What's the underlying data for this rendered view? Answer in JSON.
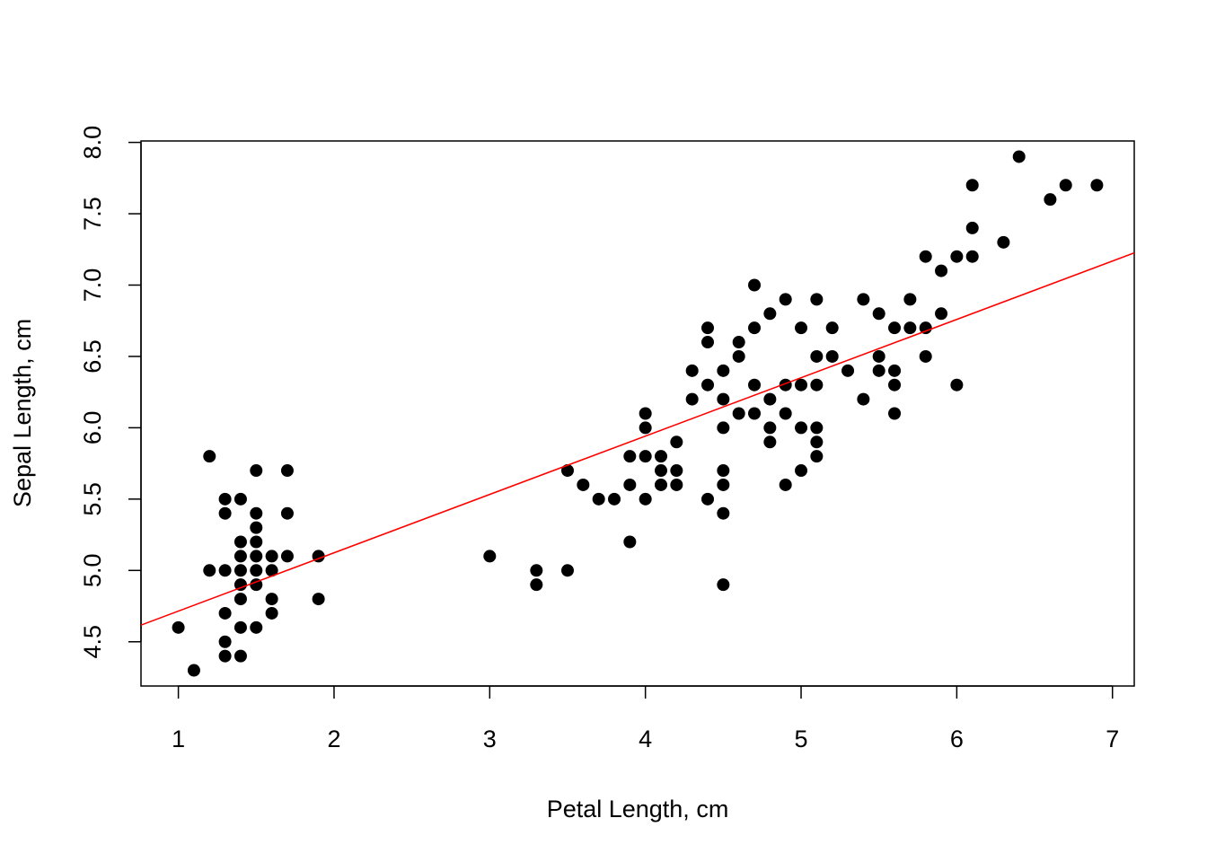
{
  "chart_data": {
    "type": "scatter",
    "title": "",
    "xlabel": "Petal Length, cm",
    "ylabel": "Sepal Length, cm",
    "xlim": [
      0.76,
      7.14
    ],
    "ylim": [
      4.19,
      8.01
    ],
    "x_ticks": [
      "1",
      "2",
      "3",
      "4",
      "5",
      "6",
      "7"
    ],
    "y_ticks": [
      "4.5",
      "5.0",
      "5.5",
      "6.0",
      "6.5",
      "7.0",
      "7.5",
      "8.0"
    ],
    "grid": false,
    "point_color": "#000000",
    "fit_line_color": "#ff0000",
    "fit_line": {
      "type": "linear",
      "intercept": 4.306,
      "slope": 0.4089
    },
    "points": [
      [
        1.0,
        4.6
      ],
      [
        1.1,
        4.3
      ],
      [
        1.2,
        5.8
      ],
      [
        1.2,
        5.0
      ],
      [
        1.3,
        5.5
      ],
      [
        1.3,
        5.4
      ],
      [
        1.3,
        5.0
      ],
      [
        1.3,
        4.7
      ],
      [
        1.3,
        4.5
      ],
      [
        1.3,
        4.4
      ],
      [
        1.4,
        5.5
      ],
      [
        1.4,
        5.2
      ],
      [
        1.4,
        5.1
      ],
      [
        1.4,
        5.0
      ],
      [
        1.4,
        4.9
      ],
      [
        1.4,
        4.8
      ],
      [
        1.4,
        4.6
      ],
      [
        1.4,
        4.4
      ],
      [
        1.5,
        5.7
      ],
      [
        1.5,
        5.4
      ],
      [
        1.5,
        5.3
      ],
      [
        1.5,
        5.2
      ],
      [
        1.5,
        5.1
      ],
      [
        1.5,
        5.0
      ],
      [
        1.5,
        4.9
      ],
      [
        1.5,
        4.6
      ],
      [
        1.6,
        5.1
      ],
      [
        1.6,
        5.0
      ],
      [
        1.6,
        4.8
      ],
      [
        1.6,
        4.7
      ],
      [
        1.7,
        5.7
      ],
      [
        1.7,
        5.4
      ],
      [
        1.7,
        5.1
      ],
      [
        1.9,
        5.1
      ],
      [
        1.9,
        4.8
      ],
      [
        3.0,
        5.1
      ],
      [
        3.3,
        5.0
      ],
      [
        3.3,
        4.9
      ],
      [
        3.5,
        5.7
      ],
      [
        3.5,
        5.0
      ],
      [
        3.6,
        5.6
      ],
      [
        3.7,
        5.5
      ],
      [
        3.8,
        5.5
      ],
      [
        3.9,
        5.8
      ],
      [
        3.9,
        5.6
      ],
      [
        3.9,
        5.2
      ],
      [
        4.0,
        6.1
      ],
      [
        4.0,
        6.0
      ],
      [
        4.0,
        5.8
      ],
      [
        4.0,
        5.5
      ],
      [
        4.1,
        5.8
      ],
      [
        4.1,
        5.7
      ],
      [
        4.1,
        5.6
      ],
      [
        4.2,
        5.9
      ],
      [
        4.2,
        5.7
      ],
      [
        4.2,
        5.6
      ],
      [
        4.3,
        6.4
      ],
      [
        4.3,
        6.2
      ],
      [
        4.4,
        6.7
      ],
      [
        4.4,
        6.6
      ],
      [
        4.4,
        6.3
      ],
      [
        4.4,
        5.5
      ],
      [
        4.5,
        6.4
      ],
      [
        4.5,
        6.2
      ],
      [
        4.5,
        6.0
      ],
      [
        4.5,
        5.7
      ],
      [
        4.5,
        5.6
      ],
      [
        4.5,
        5.4
      ],
      [
        4.5,
        4.9
      ],
      [
        4.6,
        6.6
      ],
      [
        4.6,
        6.5
      ],
      [
        4.6,
        6.1
      ],
      [
        4.7,
        7.0
      ],
      [
        4.7,
        6.7
      ],
      [
        4.7,
        6.3
      ],
      [
        4.7,
        6.1
      ],
      [
        4.8,
        6.8
      ],
      [
        4.8,
        6.2
      ],
      [
        4.8,
        6.0
      ],
      [
        4.8,
        5.9
      ],
      [
        4.9,
        6.9
      ],
      [
        4.9,
        6.3
      ],
      [
        4.9,
        6.1
      ],
      [
        4.9,
        5.6
      ],
      [
        5.0,
        6.7
      ],
      [
        5.0,
        6.3
      ],
      [
        5.0,
        6.0
      ],
      [
        5.0,
        5.7
      ],
      [
        5.1,
        6.9
      ],
      [
        5.1,
        6.5
      ],
      [
        5.1,
        6.3
      ],
      [
        5.1,
        6.0
      ],
      [
        5.1,
        5.9
      ],
      [
        5.1,
        5.8
      ],
      [
        5.2,
        6.7
      ],
      [
        5.2,
        6.5
      ],
      [
        5.3,
        6.4
      ],
      [
        5.4,
        6.9
      ],
      [
        5.4,
        6.2
      ],
      [
        5.5,
        6.8
      ],
      [
        5.5,
        6.5
      ],
      [
        5.5,
        6.4
      ],
      [
        5.6,
        6.7
      ],
      [
        5.6,
        6.4
      ],
      [
        5.6,
        6.3
      ],
      [
        5.6,
        6.1
      ],
      [
        5.7,
        6.9
      ],
      [
        5.7,
        6.7
      ],
      [
        5.8,
        7.2
      ],
      [
        5.8,
        6.7
      ],
      [
        5.8,
        6.5
      ],
      [
        5.9,
        7.1
      ],
      [
        5.9,
        6.8
      ],
      [
        6.0,
        7.2
      ],
      [
        6.0,
        6.3
      ],
      [
        6.1,
        7.7
      ],
      [
        6.1,
        7.4
      ],
      [
        6.1,
        7.2
      ],
      [
        6.3,
        7.3
      ],
      [
        6.4,
        7.9
      ],
      [
        6.6,
        7.6
      ],
      [
        6.7,
        7.7
      ],
      [
        6.9,
        7.7
      ]
    ]
  }
}
